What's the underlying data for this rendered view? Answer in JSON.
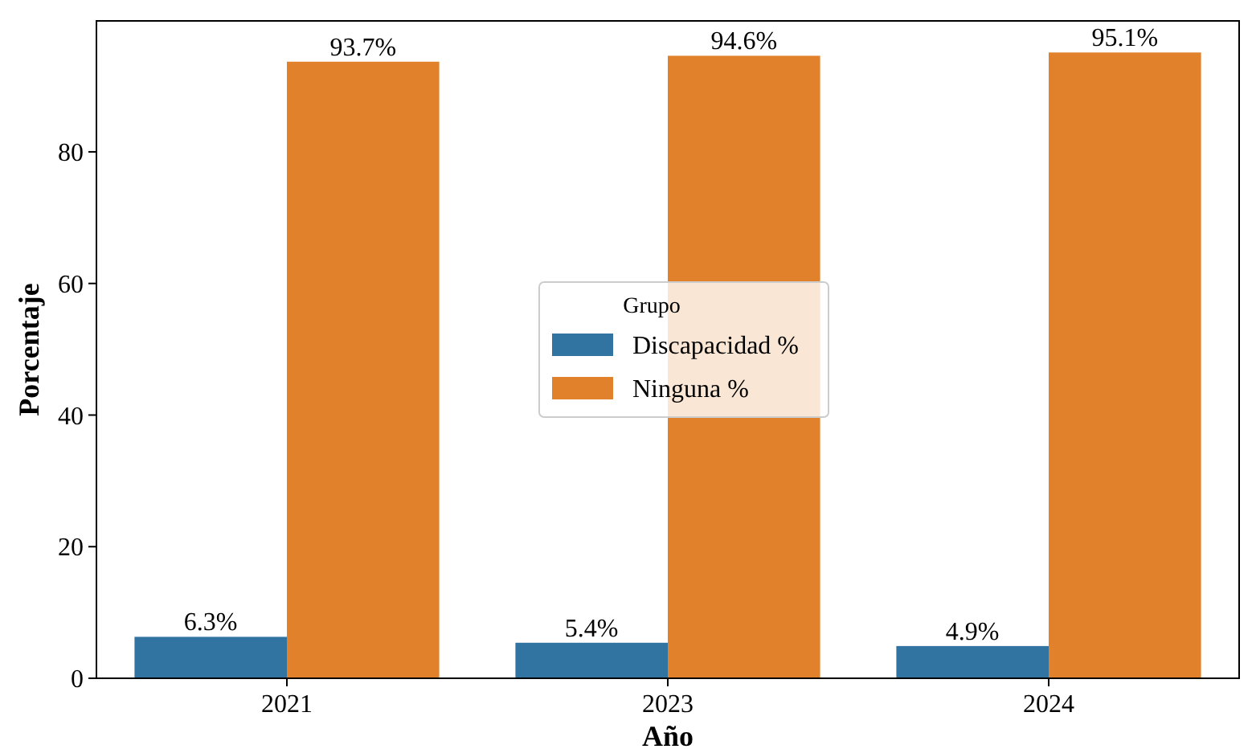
{
  "chart_data": {
    "type": "bar",
    "xlabel": "Año",
    "ylabel": "Porcentaje",
    "legend_title": "Grupo",
    "legend": "center",
    "grid": false,
    "categories": [
      "2021",
      "2023",
      "2024"
    ],
    "ylim": [
      0,
      99.9
    ],
    "yticks": [
      0,
      20,
      40,
      60,
      80
    ],
    "series": [
      {
        "name": "Discapacidad %",
        "color": "#3274a1",
        "values": [
          6.3,
          5.4,
          4.9
        ],
        "value_labels": [
          "6.3%",
          "5.4%",
          "4.9%"
        ]
      },
      {
        "name": "Ninguna %",
        "color": "#e1812c",
        "values": [
          93.7,
          94.6,
          95.1
        ],
        "value_labels": [
          "93.7%",
          "94.6%",
          "95.1%"
        ]
      }
    ]
  }
}
